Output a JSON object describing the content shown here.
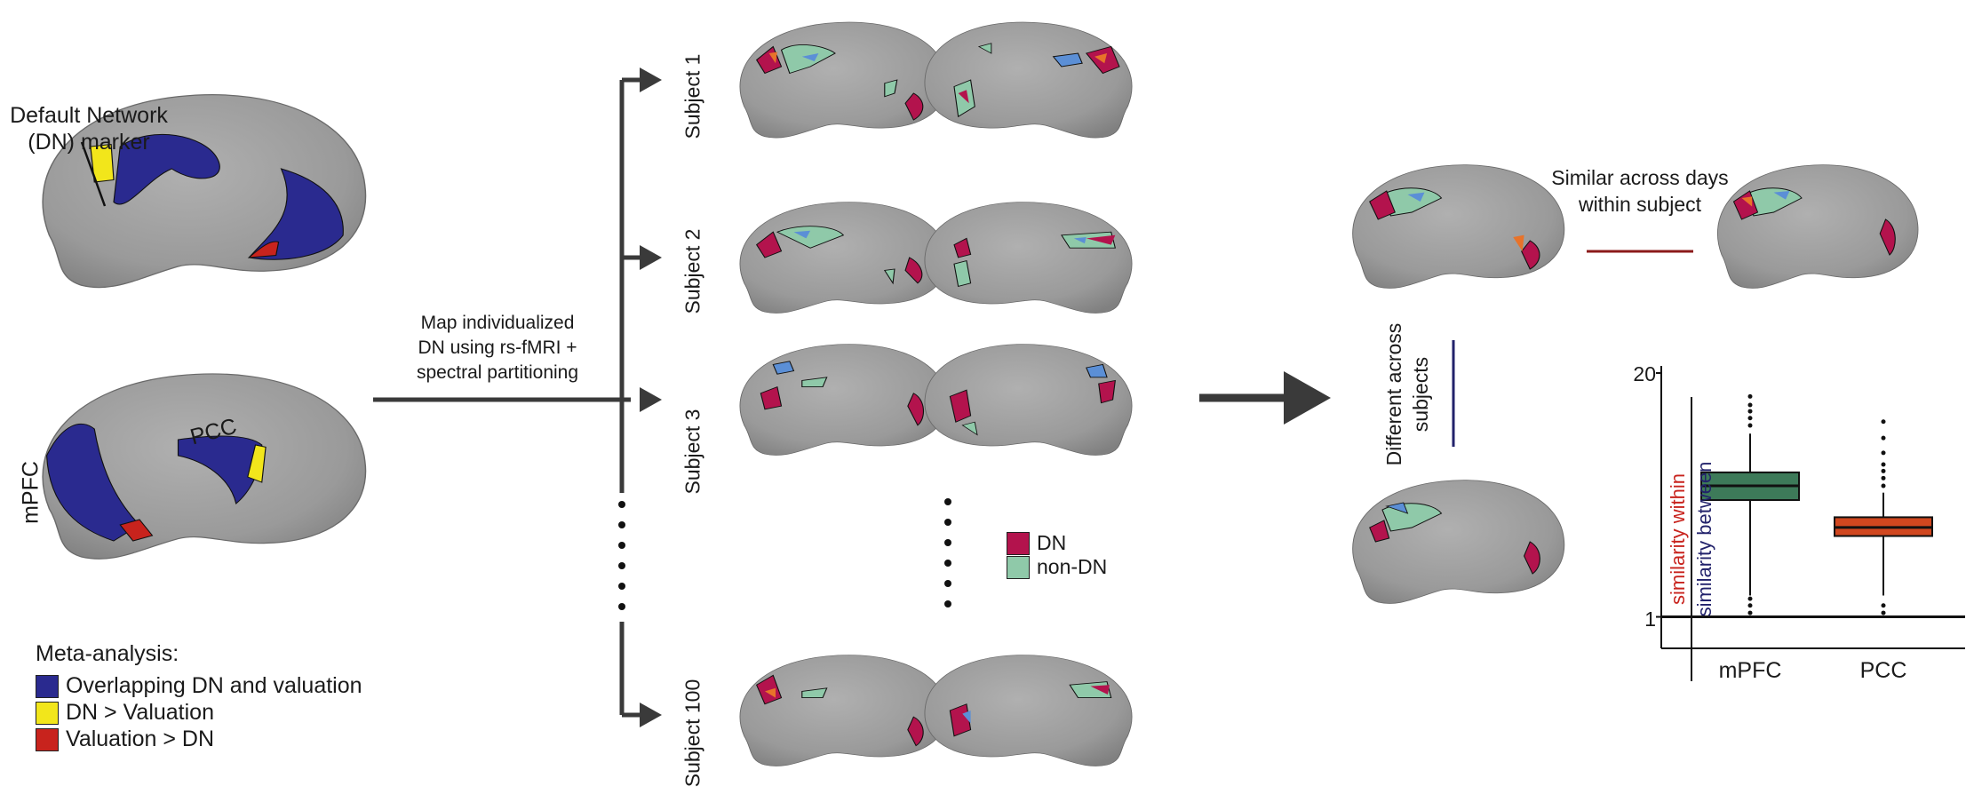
{
  "colors": {
    "blue": "#2a2a8f",
    "yellow": "#f2e61b",
    "red": "#c8231d",
    "dn": "#b3134d",
    "nondn": "#8fc9a9",
    "cortex": "#9a9a9a",
    "box_mpfc": "#3d7a59",
    "box_pcc": "#d1471f",
    "similar_line": "#8b1a1a",
    "different_line": "#22226b"
  },
  "left": {
    "dn_marker_label_1": "Default Network",
    "dn_marker_label_2": "(DN) marker",
    "mpfc_label": "mPFC",
    "pcc_label": "PCC",
    "meta_title": "Meta-analysis:",
    "legend": [
      {
        "label": "Overlapping DN and valuation",
        "color": "#2a2a8f"
      },
      {
        "label": "DN > Valuation",
        "color": "#f2e61b"
      },
      {
        "label": "Valuation > DN",
        "color": "#c8231d"
      }
    ]
  },
  "middle": {
    "map_text": [
      "Map individualized",
      "DN using rs-fMRI +",
      "spectral partitioning"
    ],
    "subjects": [
      "Subject 1",
      "Subject 2",
      "Subject 3",
      "Subject 100"
    ],
    "legend": [
      {
        "label": "DN",
        "color": "#b3134d"
      },
      {
        "label": "non-DN",
        "color": "#8fc9a9"
      }
    ]
  },
  "right": {
    "similar_label_1": "Similar across days",
    "similar_label_2": "within subject",
    "different_label_1": "Different across",
    "different_label_2": "subjects"
  },
  "chart_data": {
    "type": "box",
    "categories": [
      "mPFC",
      "PCC"
    ],
    "ylabel_numerator": "similarity within",
    "ylabel_denominator": "similarity between",
    "yticks": [
      "1",
      "20"
    ],
    "ylim": [
      0.8,
      20
    ],
    "reference_line": 1,
    "boxes": [
      {
        "name": "mPFC",
        "whisker_low": 1.3,
        "q1": 4.2,
        "median": 5.0,
        "q3": 5.9,
        "whisker_high": 9.5,
        "outliers_high": [
          10.5,
          11.5,
          12.5,
          13.5,
          15
        ],
        "outliers_low": [
          1.05,
          1.15,
          1.25
        ]
      },
      {
        "name": "PCC",
        "whisker_low": 1.3,
        "q1": 2.7,
        "median": 3.0,
        "q3": 3.4,
        "whisker_high": 4.6,
        "outliers_high": [
          5.0,
          5.5,
          6.0,
          6.5,
          7.5,
          9.0,
          11.0
        ],
        "outliers_low": [
          1.05,
          1.15
        ]
      }
    ]
  }
}
